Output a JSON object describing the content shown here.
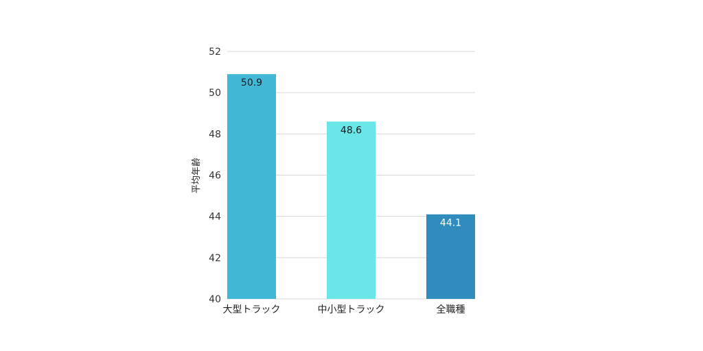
{
  "chart_data": {
    "type": "bar",
    "title": "",
    "xlabel": "",
    "ylabel": "平均年齢",
    "ylim": [
      40,
      52
    ],
    "yticks": [
      40,
      42,
      44,
      46,
      48,
      50,
      52
    ],
    "grid": true,
    "categories": [
      "大型トラック",
      "中小型トラック",
      "全職種"
    ],
    "values": [
      50.9,
      48.6,
      44.1
    ],
    "value_labels": [
      "50.9",
      "48.6",
      "44.1"
    ],
    "bar_colors": [
      "#40b8d6",
      "#6be6e8",
      "#2f8cbc"
    ],
    "label_colors": [
      "#1a1a1a",
      "#1a1a1a",
      "#ffffff"
    ]
  }
}
